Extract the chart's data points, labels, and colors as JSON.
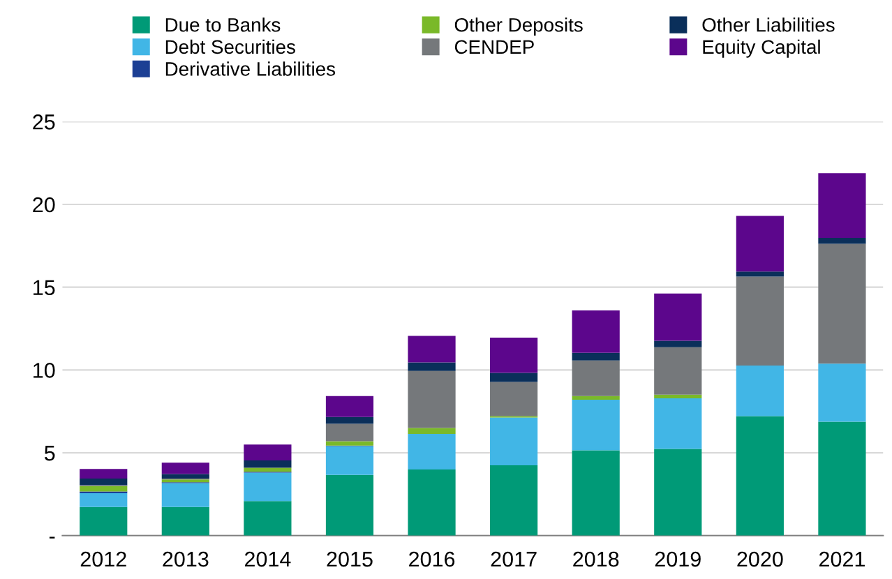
{
  "chart_data": {
    "type": "bar",
    "stacked": true,
    "categories": [
      "2012",
      "2013",
      "2014",
      "2015",
      "2016",
      "2017",
      "2018",
      "2019",
      "2020",
      "2021"
    ],
    "series": [
      {
        "name": "Due to Banks",
        "color": "#009a77",
        "values": [
          1.73,
          1.73,
          2.09,
          3.66,
          3.99,
          4.24,
          5.15,
          5.23,
          7.21,
          6.88
        ]
      },
      {
        "name": "Debt Securities",
        "color": "#41b6e6",
        "values": [
          0.83,
          1.44,
          1.71,
          1.74,
          2.15,
          2.89,
          3.05,
          3.06,
          3.06,
          3.5
        ]
      },
      {
        "name": "Derivative Liabilities",
        "color": "#1c3f94",
        "values": [
          0.1,
          0.05,
          0.05,
          0.03,
          0,
          0,
          0,
          0,
          0,
          0
        ]
      },
      {
        "name": "Other Deposits",
        "color": "#7ab929",
        "values": [
          0.33,
          0.17,
          0.25,
          0.27,
          0.36,
          0.08,
          0.23,
          0.22,
          0,
          0
        ]
      },
      {
        "name": "CENDEP",
        "color": "#75787b",
        "values": [
          0.05,
          0.05,
          0,
          1.05,
          3.44,
          2.07,
          2.14,
          2.86,
          5.37,
          7.24
        ]
      },
      {
        "name": "Other Liabilities",
        "color": "#0a2f5a",
        "values": [
          0.4,
          0.28,
          0.44,
          0.41,
          0.52,
          0.55,
          0.47,
          0.39,
          0.3,
          0.36
        ]
      },
      {
        "name": "Equity Capital",
        "color": "#5c068c",
        "values": [
          0.58,
          0.68,
          0.96,
          1.27,
          1.6,
          2.12,
          2.56,
          2.86,
          3.36,
          3.91
        ]
      }
    ],
    "ylim": [
      0,
      25
    ],
    "yticks": [
      {
        "value": 0,
        "label": "-"
      },
      5,
      10,
      15,
      20,
      25
    ],
    "grid": "y",
    "legend": "top"
  }
}
